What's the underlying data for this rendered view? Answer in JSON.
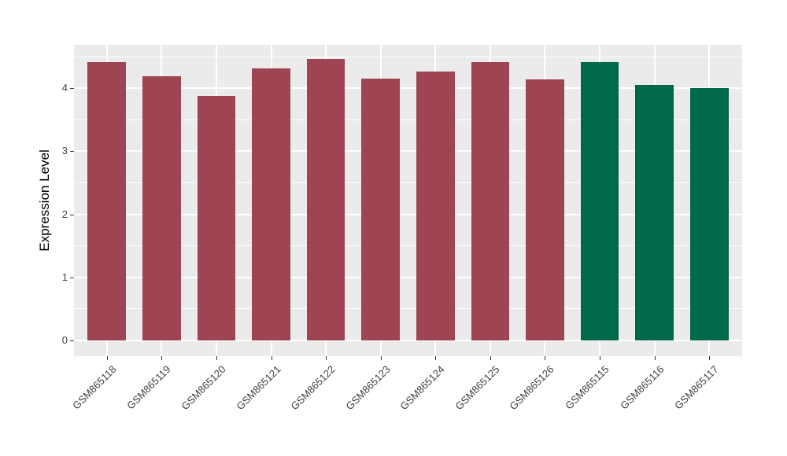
{
  "figure": {
    "background": "#FFFFFF",
    "panel_background": "#EBEBEB",
    "grid_color": "#FFFFFF",
    "tick_color": "#333333",
    "axis_text_color": "#404040"
  },
  "chart_data": {
    "type": "bar",
    "title": "",
    "xlabel": "",
    "ylabel": "Expression Level",
    "categories": [
      "GSM865118",
      "GSM865119",
      "GSM865120",
      "GSM865121",
      "GSM865122",
      "GSM865123",
      "GSM865124",
      "GSM865125",
      "GSM865126",
      "GSM865115",
      "GSM865116",
      "GSM865117"
    ],
    "values": [
      4.41,
      4.19,
      3.88,
      4.32,
      4.46,
      4.15,
      4.27,
      4.42,
      4.14,
      4.42,
      4.05,
      4.01
    ],
    "bar_groups": [
      "A",
      "A",
      "A",
      "A",
      "A",
      "A",
      "A",
      "A",
      "A",
      "B",
      "B",
      "B"
    ],
    "group_colors": {
      "A": "#9E4452",
      "B": "#006949"
    },
    "yticks": [
      0,
      1,
      2,
      3,
      4
    ],
    "minor_yticks": [
      0.5,
      1.5,
      2.5,
      3.5,
      4.5
    ],
    "ylim": [
      -0.25,
      4.69
    ],
    "bar_width_fraction": 0.7,
    "grid": "on",
    "legend": "none",
    "x_label_rotation_deg": 45
  }
}
